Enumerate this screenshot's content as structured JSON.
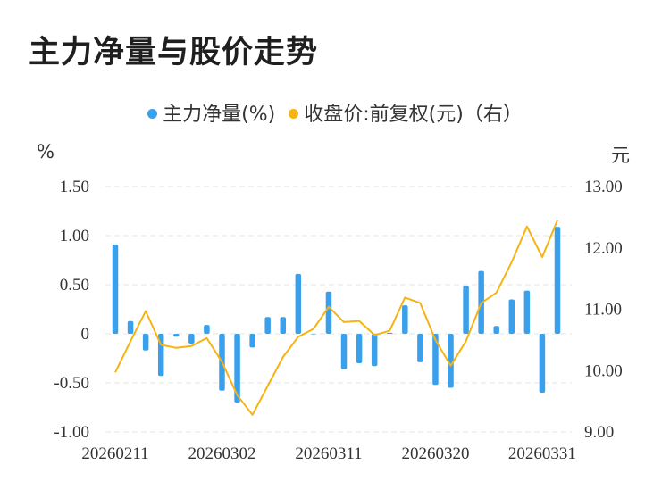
{
  "title": "主力净量与股价走势",
  "legend": [
    {
      "label": "主力净量(%)",
      "color": "#3aa0ec"
    },
    {
      "label": "收盘价:前复权(元)（右）",
      "color": "#f5b412"
    }
  ],
  "chart_data": {
    "type": "bar+line",
    "left_unit": "%",
    "right_unit": "元",
    "y_left": {
      "min": -1.0,
      "max": 1.5,
      "ticks": [
        "1.50",
        "1.00",
        "0.50",
        "0",
        "-0.50",
        "-1.00"
      ]
    },
    "y_right": {
      "min": 9.0,
      "max": 13.0,
      "ticks": [
        "13.00",
        "12.00",
        "11.00",
        "10.00",
        "9.00"
      ]
    },
    "x_labels": [
      {
        "label": "20260211",
        "index": 0
      },
      {
        "label": "20260302",
        "index": 7
      },
      {
        "label": "20260311",
        "index": 14
      },
      {
        "label": "20260320",
        "index": 21
      },
      {
        "label": "20260331",
        "index": 28
      }
    ],
    "series": [
      {
        "name": "主力净量(%)",
        "type": "bar",
        "color": "#3aa0ec",
        "values": [
          0.91,
          0.13,
          -0.17,
          -0.43,
          -0.03,
          -0.1,
          0.09,
          -0.58,
          -0.7,
          -0.14,
          0.17,
          0.17,
          0.61,
          0.0,
          0.43,
          -0.36,
          -0.3,
          -0.33,
          0.01,
          0.29,
          -0.29,
          -0.52,
          -0.55,
          0.49,
          0.64,
          0.08,
          0.35,
          0.44,
          -0.6,
          1.09
        ]
      },
      {
        "name": "收盘价:前复权(元)（右）",
        "type": "line",
        "color": "#f5b412",
        "values": [
          9.97,
          10.48,
          10.97,
          10.42,
          10.37,
          10.4,
          10.53,
          10.14,
          9.6,
          9.28,
          9.75,
          10.22,
          10.55,
          10.68,
          11.04,
          10.79,
          10.81,
          10.58,
          10.65,
          11.19,
          11.1,
          10.5,
          10.08,
          10.48,
          11.1,
          11.27,
          11.77,
          12.35,
          11.85,
          12.45
        ]
      }
    ]
  }
}
